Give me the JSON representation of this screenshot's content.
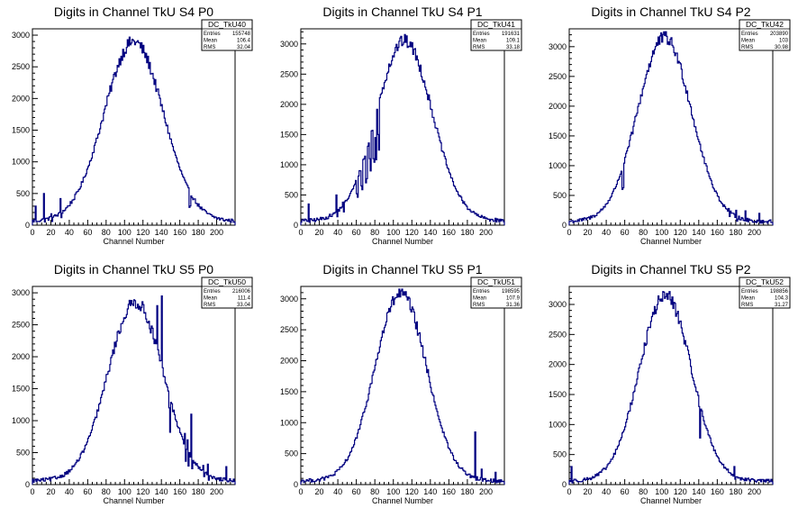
{
  "chart_data": [
    {
      "type": "histogram",
      "title": "Digits in Channel TkU S4 P0",
      "xlabel": "Channel Number",
      "xlim": [
        0,
        220
      ],
      "ylim": [
        0,
        3100
      ],
      "xticks": [
        0,
        20,
        40,
        60,
        80,
        100,
        120,
        140,
        160,
        180,
        200
      ],
      "yticks": [
        0,
        500,
        1000,
        1500,
        2000,
        2500,
        3000
      ],
      "stats": {
        "name": "DC_TkU40",
        "entries": "155748",
        "mean": "106.4",
        "rms": "32.04"
      },
      "mu": 110,
      "sigma": 32,
      "peak": 2900,
      "floor": 60,
      "spikes": [
        [
          3,
          300
        ],
        [
          12,
          500
        ],
        [
          20,
          180
        ],
        [
          30,
          420
        ],
        [
          170,
          280
        ]
      ]
    },
    {
      "type": "histogram",
      "title": "Digits in Channel TkU S4 P1",
      "xlabel": "Channel Number",
      "xlim": [
        0,
        220
      ],
      "ylim": [
        0,
        3250
      ],
      "xticks": [
        0,
        20,
        40,
        60,
        80,
        100,
        120,
        140,
        160,
        180,
        200
      ],
      "yticks": [
        0,
        500,
        1000,
        1500,
        2000,
        2500,
        3000
      ],
      "stats": {
        "name": "DC_TkU41",
        "entries": "191631",
        "mean": "109.1",
        "rms": "33.18"
      },
      "mu": 112,
      "sigma": 30,
      "peak": 3050,
      "floor": 70,
      "spikes": [
        [
          8,
          350
        ],
        [
          38,
          500
        ],
        [
          45,
          380
        ],
        [
          60,
          520
        ],
        [
          65,
          650
        ],
        [
          70,
          700
        ],
        [
          74,
          1100
        ],
        [
          78,
          1100
        ],
        [
          80,
          1450
        ],
        [
          83,
          1500
        ]
      ]
    },
    {
      "type": "histogram",
      "title": "Digits in Channel TkU S4 P2",
      "xlabel": "Channel Number",
      "xlim": [
        0,
        220
      ],
      "ylim": [
        0,
        3300
      ],
      "xticks": [
        0,
        20,
        40,
        60,
        80,
        100,
        120,
        140,
        160,
        180,
        200
      ],
      "yticks": [
        0,
        500,
        1000,
        1500,
        2000,
        2500,
        3000
      ],
      "stats": {
        "name": "DC_TkU42",
        "entries": "203890",
        "mean": "103",
        "rms": "30.98"
      },
      "mu": 103,
      "sigma": 29,
      "peak": 3150,
      "floor": 60,
      "spikes": [
        [
          57,
          600
        ],
        [
          172,
          280
        ],
        [
          180,
          250
        ],
        [
          190,
          240
        ],
        [
          205,
          200
        ]
      ]
    },
    {
      "type": "histogram",
      "title": "Digits in Channel TkU S5 P0",
      "xlabel": "Channel Number",
      "xlim": [
        0,
        220
      ],
      "ylim": [
        0,
        3100
      ],
      "xticks": [
        0,
        20,
        40,
        60,
        80,
        100,
        120,
        140,
        160,
        180,
        200
      ],
      "yticks": [
        0,
        500,
        1000,
        1500,
        2000,
        2500,
        3000
      ],
      "stats": {
        "name": "DC_TkU50",
        "entries": "216006",
        "mean": "111.4",
        "rms": "33.04"
      },
      "mu": 112,
      "sigma": 30,
      "peak": 2850,
      "floor": 60,
      "spikes": [
        [
          135,
          2800
        ],
        [
          140,
          2950
        ],
        [
          148,
          1200
        ],
        [
          165,
          800
        ],
        [
          168,
          700
        ],
        [
          172,
          1100
        ],
        [
          185,
          300
        ],
        [
          190,
          320
        ],
        [
          210,
          280
        ]
      ]
    },
    {
      "type": "histogram",
      "title": "Digits in Channel TkU S5 P1",
      "xlabel": "Channel Number",
      "xlim": [
        0,
        220
      ],
      "ylim": [
        0,
        3200
      ],
      "xticks": [
        0,
        20,
        40,
        60,
        80,
        100,
        120,
        140,
        160,
        180,
        200
      ],
      "yticks": [
        0,
        500,
        1000,
        1500,
        2000,
        2500,
        3000
      ],
      "stats": {
        "name": "DC_TkU51",
        "entries": "198595",
        "mean": "107.9",
        "rms": "31.36"
      },
      "mu": 108,
      "sigma": 28,
      "peak": 3080,
      "floor": 60,
      "spikes": [
        [
          188,
          850
        ],
        [
          195,
          250
        ],
        [
          210,
          200
        ]
      ]
    },
    {
      "type": "histogram",
      "title": "Digits in Channel TkU S5 P2",
      "xlabel": "Channel Number",
      "xlim": [
        0,
        220
      ],
      "ylim": [
        0,
        3300
      ],
      "xticks": [
        0,
        20,
        40,
        60,
        80,
        100,
        120,
        140,
        160,
        180,
        200
      ],
      "yticks": [
        0,
        500,
        1000,
        1500,
        2000,
        2500,
        3000
      ],
      "stats": {
        "name": "DC_TkU52",
        "entries": "198856",
        "mean": "104.3",
        "rms": "31.27"
      },
      "mu": 104,
      "sigma": 28,
      "peak": 3150,
      "floor": 60,
      "spikes": [
        [
          2,
          300
        ],
        [
          140,
          1300
        ],
        [
          178,
          300
        ]
      ]
    }
  ],
  "stat_labels": {
    "entries": "Entries",
    "mean": "Mean",
    "rms": "RMS"
  },
  "colors": {
    "line": "#000080",
    "axis": "#000000",
    "background": "#ffffff"
  }
}
